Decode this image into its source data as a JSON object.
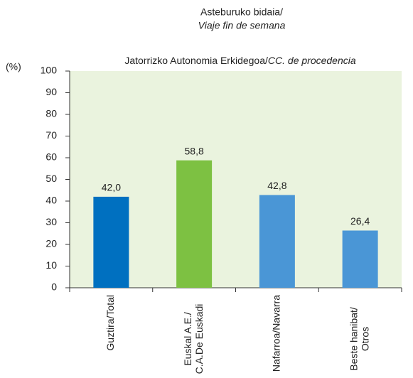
{
  "chart_data": {
    "type": "bar",
    "title": [
      "Asteburuko bidaia/",
      "Viaje fin de semana"
    ],
    "subtitle": [
      "Jatorrizko Autonomia Erkidegoa/",
      "CC. de procedencia"
    ],
    "y_label": "(%)",
    "categories": [
      [
        "Guztira/Total"
      ],
      [
        "Euskal A.E./",
        "C.A.De Euskadi"
      ],
      [
        "Nafarroa/Navarra"
      ],
      [
        "Beste hanibat/",
        "Otros"
      ]
    ],
    "values": [
      42.0,
      58.8,
      42.8,
      26.4
    ],
    "value_labels": [
      "42,0",
      "58,8",
      "42,8",
      "26,4"
    ],
    "colors": [
      "#0070c0",
      "#7dc142",
      "#4a96d6",
      "#4a96d6"
    ],
    "plot_background": "#eaf3de",
    "ylim": [
      0,
      100
    ],
    "yticks": [
      0,
      10,
      20,
      30,
      40,
      50,
      60,
      70,
      80,
      90,
      100
    ],
    "grid": false
  }
}
